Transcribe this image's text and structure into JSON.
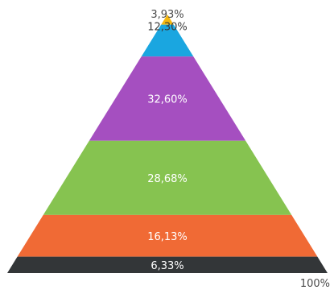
{
  "chart_data": {
    "type": "pyramid",
    "segments": [
      {
        "label": "3,93%",
        "value": 3.93,
        "color": "#f5b70f",
        "label_color": "#4a4a4a"
      },
      {
        "label": "12,30%",
        "value": 12.3,
        "color": "#1aa6e0",
        "label_color": "#3a3a3a"
      },
      {
        "label": "32,60%",
        "value": 32.6,
        "color": "#a54fc0",
        "label_color": "#ffffff"
      },
      {
        "label": "28,68%",
        "value": 28.68,
        "color": "#86c350",
        "label_color": "#ffffff"
      },
      {
        "label": "16,13%",
        "value": 16.13,
        "color": "#f06a35",
        "label_color": "#ffffff"
      },
      {
        "label": "6,33%",
        "value": 6.33,
        "color": "#333638",
        "label_color": "#ffffff"
      }
    ],
    "total_label": "100%"
  }
}
